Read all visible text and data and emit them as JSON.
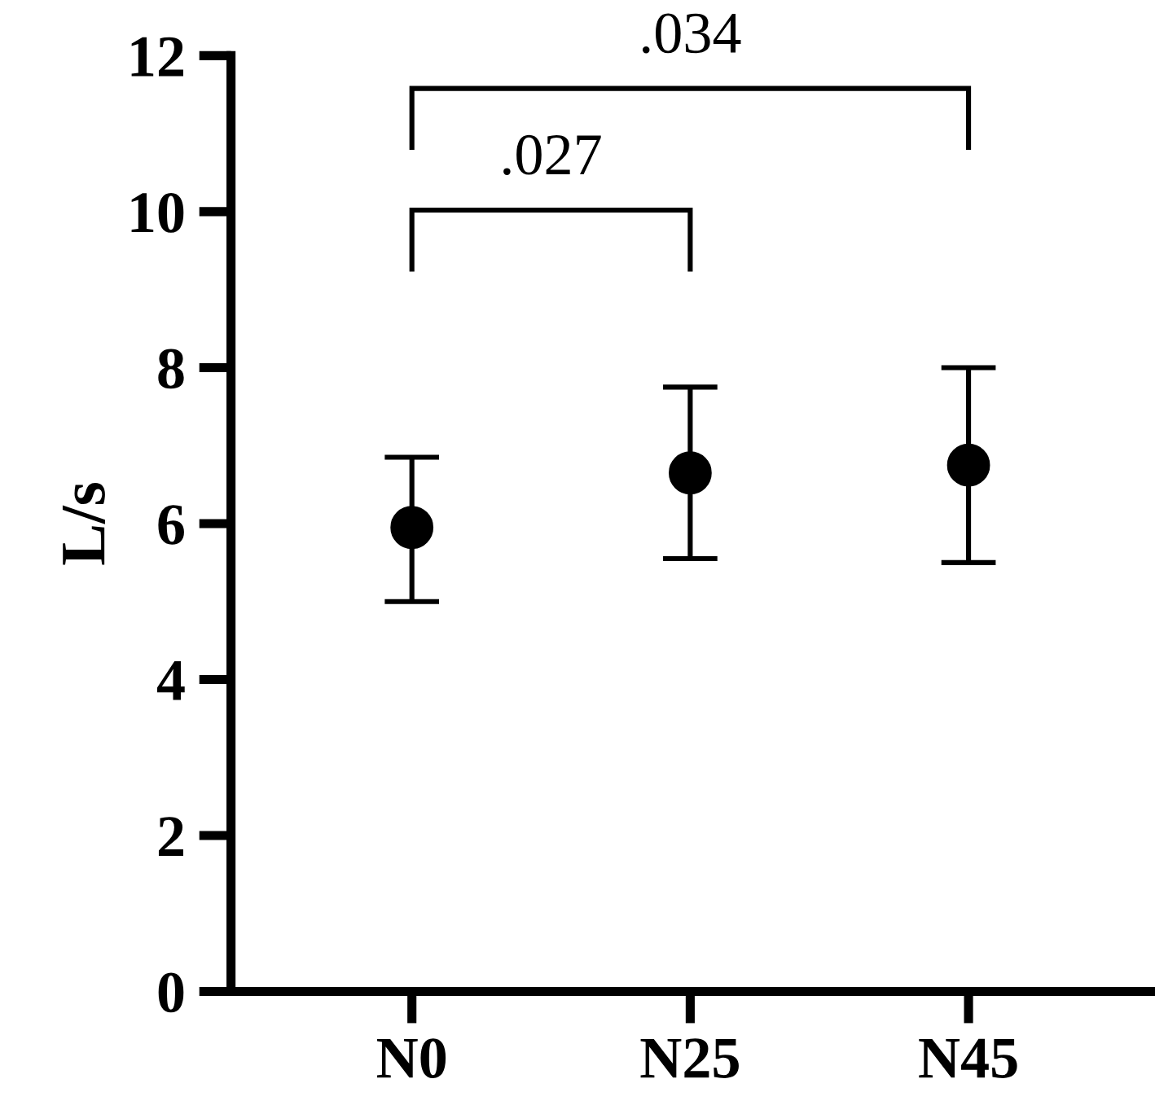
{
  "chart_data": {
    "type": "scatter",
    "ylabel": "L/s",
    "categories": [
      "N0",
      "N25",
      "N45"
    ],
    "series": [
      {
        "color": "#000000",
        "values": [
          5.95,
          6.65,
          6.75
        ],
        "errors": [
          [
            5.0,
            6.85
          ],
          [
            5.55,
            7.75
          ],
          [
            5.5,
            8.0
          ]
        ]
      }
    ],
    "ylim": [
      0,
      12
    ],
    "yticks": [
      0,
      2,
      4,
      6,
      8,
      10,
      12
    ],
    "marker": "circle",
    "grid": false,
    "legend": false,
    "annotations": [
      ".027",
      ".034"
    ]
  }
}
